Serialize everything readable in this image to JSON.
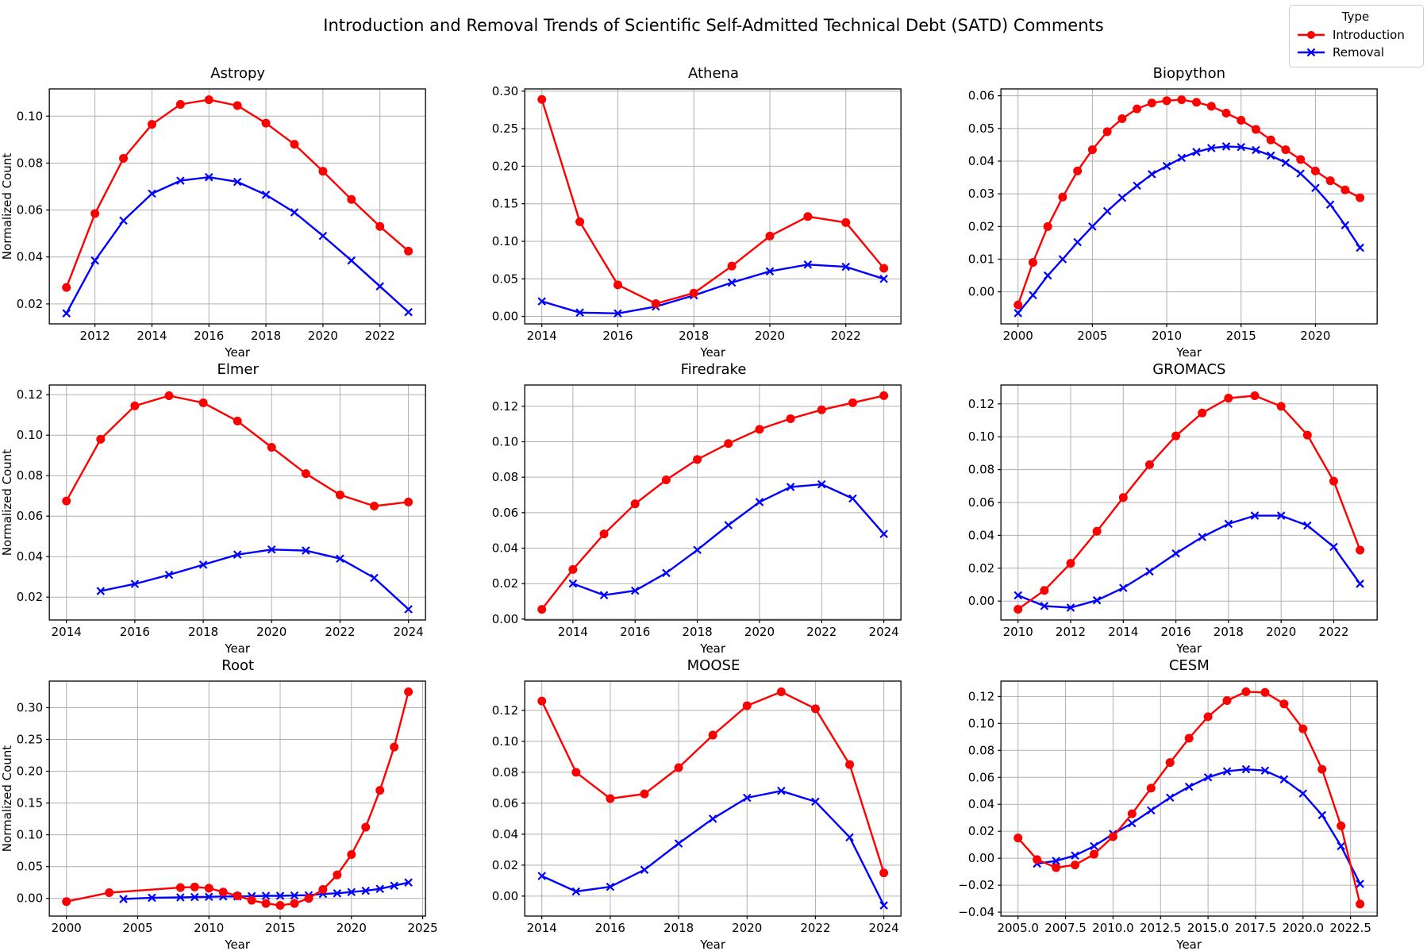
{
  "page_title": "Introduction and Removal Trends of Scientific Self-Admitted Technical Debt (SATD) Comments",
  "legend": {
    "title": "Type",
    "entries": [
      {
        "label": "Introduction",
        "color": "#ff0000",
        "marker": "circle"
      },
      {
        "label": "Removal",
        "color": "#0000ff",
        "marker": "x"
      }
    ]
  },
  "colors": {
    "introduction": "#ff0000",
    "removal": "#0000ff",
    "grid": "#b0b0b0",
    "axis": "#000000",
    "background": "#ffffff"
  },
  "chart_data": [
    {
      "type": "line",
      "title": "Astropy",
      "xlabel": "Year",
      "ylabel": "Normalized Count",
      "grid": true,
      "legend_position": "figure-top-right",
      "xlim": [
        2010.4,
        2023.6
      ],
      "ylim": [
        0.0115,
        0.1116
      ],
      "xticks": [
        2012,
        2014,
        2016,
        2018,
        2020,
        2022
      ],
      "xtick_decimals": 0,
      "yticks": [
        0.02,
        0.04,
        0.06,
        0.08,
        0.1
      ],
      "ytick_decimals": 2,
      "series": [
        {
          "name": "Introduction",
          "x": [
            2011,
            2012,
            2013,
            2014,
            2015,
            2016,
            2017,
            2018,
            2019,
            2020,
            2021,
            2022,
            2023
          ],
          "y": [
            0.027,
            0.0585,
            0.082,
            0.0965,
            0.105,
            0.107,
            0.1045,
            0.097,
            0.088,
            0.0765,
            0.0645,
            0.053,
            0.0425
          ]
        },
        {
          "name": "Removal",
          "x": [
            2011,
            2012,
            2013,
            2014,
            2015,
            2016,
            2017,
            2018,
            2019,
            2020,
            2021,
            2022,
            2023
          ],
          "y": [
            0.016,
            0.0385,
            0.0555,
            0.067,
            0.0725,
            0.074,
            0.072,
            0.0665,
            0.059,
            0.049,
            0.0385,
            0.0275,
            0.0165
          ]
        }
      ]
    },
    {
      "type": "line",
      "title": "Athena",
      "xlabel": "Year",
      "ylabel": "",
      "grid": true,
      "xlim": [
        2013.55,
        2023.45
      ],
      "ylim": [
        -0.01,
        0.303
      ],
      "xticks": [
        2014,
        2016,
        2018,
        2020,
        2022
      ],
      "xtick_decimals": 0,
      "yticks": [
        0.0,
        0.05,
        0.1,
        0.15,
        0.2,
        0.25,
        0.3
      ],
      "ytick_decimals": 2,
      "series": [
        {
          "name": "Introduction",
          "x": [
            2014,
            2015,
            2016,
            2017,
            2018,
            2019,
            2020,
            2021,
            2022,
            2023
          ],
          "y": [
            0.289,
            0.126,
            0.042,
            0.017,
            0.031,
            0.067,
            0.107,
            0.133,
            0.125,
            0.064
          ]
        },
        {
          "name": "Removal",
          "x": [
            2014,
            2015,
            2016,
            2017,
            2018,
            2019,
            2020,
            2021,
            2022,
            2023
          ],
          "y": [
            0.02,
            0.005,
            0.004,
            0.013,
            0.028,
            0.045,
            0.06,
            0.069,
            0.066,
            0.05
          ]
        }
      ]
    },
    {
      "type": "line",
      "title": "Biopython",
      "xlabel": "Year",
      "ylabel": "",
      "grid": true,
      "xlim": [
        1998.85,
        2024.15
      ],
      "ylim": [
        -0.0098,
        0.0621
      ],
      "xticks": [
        2000,
        2005,
        2010,
        2015,
        2020
      ],
      "xtick_decimals": 0,
      "yticks": [
        0.0,
        0.01,
        0.02,
        0.03,
        0.04,
        0.05,
        0.06
      ],
      "ytick_decimals": 2,
      "series": [
        {
          "name": "Introduction",
          "x": [
            2000,
            2001,
            2002,
            2003,
            2004,
            2005,
            2006,
            2007,
            2008,
            2009,
            2010,
            2011,
            2012,
            2013,
            2014,
            2015,
            2016,
            2017,
            2018,
            2019,
            2020,
            2021,
            2022,
            2023
          ],
          "y": [
            -0.004,
            0.009,
            0.02,
            0.029,
            0.037,
            0.0435,
            0.049,
            0.053,
            0.056,
            0.0578,
            0.0585,
            0.0588,
            0.058,
            0.0568,
            0.0547,
            0.0525,
            0.0497,
            0.0465,
            0.0435,
            0.0405,
            0.037,
            0.034,
            0.0312,
            0.0288
          ]
        },
        {
          "name": "Removal",
          "x": [
            2000,
            2001,
            2002,
            2003,
            2004,
            2005,
            2006,
            2007,
            2008,
            2009,
            2010,
            2011,
            2012,
            2013,
            2014,
            2015,
            2016,
            2017,
            2018,
            2019,
            2020,
            2021,
            2022,
            2023
          ],
          "y": [
            -0.0065,
            -0.001,
            0.005,
            0.01,
            0.0152,
            0.02,
            0.0247,
            0.0288,
            0.0325,
            0.036,
            0.0385,
            0.041,
            0.0428,
            0.044,
            0.0445,
            0.0443,
            0.0434,
            0.0417,
            0.0395,
            0.0362,
            0.0318,
            0.0267,
            0.0204,
            0.0135
          ]
        }
      ]
    },
    {
      "type": "line",
      "title": "Elmer",
      "xlabel": "Year",
      "ylabel": "Normalized Count",
      "grid": true,
      "xlim": [
        2013.5,
        2024.5
      ],
      "ylim": [
        0.0087,
        0.1248
      ],
      "xticks": [
        2014,
        2016,
        2018,
        2020,
        2022,
        2024
      ],
      "xtick_decimals": 0,
      "yticks": [
        0.02,
        0.04,
        0.06,
        0.08,
        0.1,
        0.12
      ],
      "ytick_decimals": 2,
      "series": [
        {
          "name": "Introduction",
          "x": [
            2014,
            2015,
            2016,
            2017,
            2018,
            2019,
            2020,
            2021,
            2022,
            2023,
            2024
          ],
          "y": [
            0.0675,
            0.098,
            0.1145,
            0.1195,
            0.116,
            0.107,
            0.094,
            0.081,
            0.0705,
            0.065,
            0.067
          ]
        },
        {
          "name": "Removal",
          "x": [
            2015,
            2016,
            2017,
            2018,
            2019,
            2020,
            2021,
            2022,
            2023,
            2024
          ],
          "y": [
            0.023,
            0.0265,
            0.031,
            0.036,
            0.041,
            0.0435,
            0.043,
            0.039,
            0.0295,
            0.014
          ]
        }
      ]
    },
    {
      "type": "line",
      "title": "Firedrake",
      "xlabel": "Year",
      "ylabel": "",
      "grid": true,
      "xlim": [
        2012.45,
        2024.55
      ],
      "ylim": [
        -0.0005,
        0.132
      ],
      "xticks": [
        2014,
        2016,
        2018,
        2020,
        2022,
        2024
      ],
      "xtick_decimals": 0,
      "yticks": [
        0.0,
        0.02,
        0.04,
        0.06,
        0.08,
        0.1,
        0.12
      ],
      "ytick_decimals": 2,
      "series": [
        {
          "name": "Introduction",
          "x": [
            2013,
            2014,
            2015,
            2016,
            2017,
            2018,
            2019,
            2020,
            2021,
            2022,
            2023,
            2024
          ],
          "y": [
            0.0055,
            0.028,
            0.048,
            0.065,
            0.0785,
            0.09,
            0.099,
            0.107,
            0.113,
            0.118,
            0.122,
            0.126
          ]
        },
        {
          "name": "Removal",
          "x": [
            2014,
            2015,
            2016,
            2017,
            2018,
            2019,
            2020,
            2021,
            2022,
            2023,
            2024
          ],
          "y": [
            0.02,
            0.0135,
            0.016,
            0.026,
            0.039,
            0.053,
            0.066,
            0.0745,
            0.076,
            0.068,
            0.048
          ]
        }
      ]
    },
    {
      "type": "line",
      "title": "GROMACS",
      "xlabel": "Year",
      "ylabel": "",
      "grid": true,
      "xlim": [
        2009.35,
        2023.65
      ],
      "ylim": [
        -0.0115,
        0.1315
      ],
      "xticks": [
        2010,
        2012,
        2014,
        2016,
        2018,
        2020,
        2022
      ],
      "xtick_decimals": 0,
      "yticks": [
        0.0,
        0.02,
        0.04,
        0.06,
        0.08,
        0.1,
        0.12
      ],
      "ytick_decimals": 2,
      "series": [
        {
          "name": "Introduction",
          "x": [
            2010,
            2011,
            2012,
            2013,
            2014,
            2015,
            2016,
            2017,
            2018,
            2019,
            2020,
            2021,
            2022,
            2023
          ],
          "y": [
            -0.005,
            0.0065,
            0.023,
            0.0425,
            0.063,
            0.083,
            0.1005,
            0.1145,
            0.1235,
            0.125,
            0.1185,
            0.101,
            0.073,
            0.031
          ]
        },
        {
          "name": "Removal",
          "x": [
            2010,
            2011,
            2012,
            2013,
            2014,
            2015,
            2016,
            2017,
            2018,
            2019,
            2020,
            2021,
            2022,
            2023
          ],
          "y": [
            0.0035,
            -0.003,
            -0.004,
            0.0005,
            0.008,
            0.018,
            0.029,
            0.039,
            0.047,
            0.052,
            0.052,
            0.046,
            0.033,
            0.0105
          ]
        }
      ]
    },
    {
      "type": "line",
      "title": "Root",
      "xlabel": "Year",
      "ylabel": "Normalized Count",
      "grid": true,
      "xlim": [
        1998.8,
        2025.2
      ],
      "ylim": [
        -0.0278,
        0.3418
      ],
      "xticks": [
        2000,
        2005,
        2010,
        2015,
        2020,
        2025
      ],
      "xtick_decimals": 0,
      "yticks": [
        0.0,
        0.05,
        0.1,
        0.15,
        0.2,
        0.25,
        0.3
      ],
      "ytick_decimals": 2,
      "series": [
        {
          "name": "Introduction",
          "x": [
            2000,
            2003,
            2008,
            2009,
            2010,
            2011,
            2012,
            2013,
            2014,
            2015,
            2016,
            2017,
            2018,
            2019,
            2020,
            2021,
            2022,
            2023,
            2024
          ],
          "y": [
            -0.005,
            0.009,
            0.017,
            0.018,
            0.016,
            0.01,
            0.004,
            -0.003,
            -0.008,
            -0.011,
            -0.008,
            0.0,
            0.014,
            0.037,
            0.069,
            0.112,
            0.17,
            0.238,
            0.325
          ]
        },
        {
          "name": "Removal",
          "x": [
            2004,
            2006,
            2008,
            2009,
            2010,
            2011,
            2012,
            2013,
            2014,
            2015,
            2016,
            2017,
            2018,
            2019,
            2020,
            2021,
            2022,
            2023,
            2024
          ],
          "y": [
            -0.001,
            0.001,
            0.0015,
            0.002,
            0.0025,
            0.003,
            0.003,
            0.0035,
            0.004,
            0.004,
            0.0045,
            0.005,
            0.007,
            0.008,
            0.01,
            0.012,
            0.015,
            0.02,
            0.025
          ]
        }
      ]
    },
    {
      "type": "line",
      "title": "MOOSE",
      "xlabel": "Year",
      "ylabel": "",
      "grid": true,
      "xlim": [
        2013.5,
        2024.5
      ],
      "ylim": [
        -0.0129,
        0.1389
      ],
      "xticks": [
        2014,
        2016,
        2018,
        2020,
        2022,
        2024
      ],
      "xtick_decimals": 0,
      "yticks": [
        0.0,
        0.02,
        0.04,
        0.06,
        0.08,
        0.1,
        0.12
      ],
      "ytick_decimals": 2,
      "series": [
        {
          "name": "Introduction",
          "x": [
            2014,
            2015,
            2016,
            2017,
            2018,
            2019,
            2020,
            2021,
            2022,
            2023,
            2024
          ],
          "y": [
            0.126,
            0.08,
            0.063,
            0.066,
            0.083,
            0.104,
            0.123,
            0.132,
            0.121,
            0.085,
            0.015
          ]
        },
        {
          "name": "Removal",
          "x": [
            2014,
            2015,
            2016,
            2017,
            2018,
            2019,
            2020,
            2021,
            2022,
            2023,
            2024
          ],
          "y": [
            0.013,
            0.003,
            0.006,
            0.017,
            0.034,
            0.05,
            0.0635,
            0.068,
            0.061,
            0.038,
            -0.006
          ]
        }
      ]
    },
    {
      "type": "line",
      "title": "CESM",
      "xlabel": "Year",
      "ylabel": "",
      "grid": true,
      "xlim": [
        2004.1,
        2023.9
      ],
      "ylim": [
        -0.0429,
        0.1314
      ],
      "xticks": [
        2005.0,
        2007.5,
        2010.0,
        2012.5,
        2015.0,
        2017.5,
        2020.0,
        2022.5
      ],
      "xtick_decimals": 1,
      "yticks": [
        -0.04,
        -0.02,
        0.0,
        0.02,
        0.04,
        0.06,
        0.08,
        0.1,
        0.12
      ],
      "ytick_decimals": 2,
      "series": [
        {
          "name": "Introduction",
          "x": [
            2005,
            2006,
            2007,
            2008,
            2009,
            2010,
            2011,
            2012,
            2013,
            2014,
            2015,
            2016,
            2017,
            2018,
            2019,
            2020,
            2021,
            2022,
            2023
          ],
          "y": [
            0.015,
            -0.001,
            -0.007,
            -0.005,
            0.003,
            0.016,
            0.033,
            0.052,
            0.071,
            0.089,
            0.105,
            0.117,
            0.1235,
            0.123,
            0.1145,
            0.096,
            0.066,
            0.024,
            -0.034
          ]
        },
        {
          "name": "Removal",
          "x": [
            2006,
            2007,
            2008,
            2009,
            2010,
            2011,
            2012,
            2013,
            2014,
            2015,
            2016,
            2017,
            2018,
            2019,
            2020,
            2021,
            2022,
            2023
          ],
          "y": [
            -0.004,
            -0.002,
            0.002,
            0.009,
            0.018,
            0.026,
            0.0355,
            0.045,
            0.053,
            0.06,
            0.0645,
            0.066,
            0.065,
            0.0585,
            0.048,
            0.032,
            0.009,
            -0.019
          ]
        }
      ]
    }
  ]
}
